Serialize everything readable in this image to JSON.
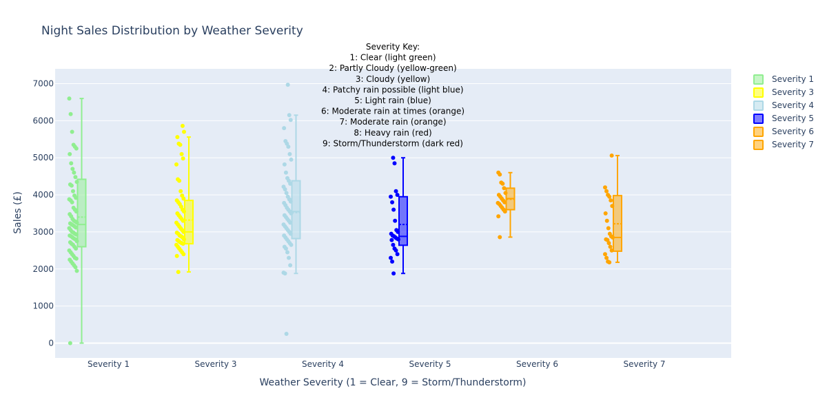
{
  "chart_data": {
    "type": "box",
    "title": "Night Sales Distribution by Weather Severity",
    "xlabel": "Weather Severity (1 = Clear, 9 = Storm/Thunderstorm)",
    "ylabel": "Sales (£)",
    "ylim": [
      -400,
      7400
    ],
    "yticks": [
      0,
      1000,
      2000,
      3000,
      4000,
      5000,
      6000,
      7000
    ],
    "grid": true,
    "legend_position": "top-right",
    "categories": [
      "Severity 1",
      "Severity 3",
      "Severity 4",
      "Severity 5",
      "Severity 6",
      "Severity 7"
    ],
    "annotation": {
      "lines": [
        "Severity Key:",
        "1: Clear (light green)",
        "2: Partly Cloudy (yellow-green)",
        "3: Cloudy (yellow)",
        "4: Patchy rain possible (light blue)",
        "5: Light rain (blue)",
        "6: Moderate rain at times (orange)",
        "7: Moderate rain (orange)",
        "8: Heavy rain (red)",
        "9: Storm/Thunderstorm (dark red)"
      ]
    },
    "series": [
      {
        "name": "Severity 1",
        "color": "#90ee90",
        "min": 0,
        "q1": 2600,
        "median": 3200,
        "q3": 4420,
        "max": 6600,
        "mean": 3400,
        "points": [
          6600,
          6180,
          5700,
          5350,
          5300,
          5250,
          5100,
          4850,
          4700,
          4600,
          4480,
          4350,
          4280,
          4250,
          4100,
          3980,
          3920,
          3880,
          3850,
          3800,
          3650,
          3600,
          3550,
          3480,
          3420,
          3350,
          3300,
          3280,
          3250,
          3230,
          3200,
          3180,
          3150,
          3120,
          3100,
          3050,
          3000,
          2980,
          2950,
          2930,
          2900,
          2880,
          2850,
          2820,
          2800,
          2750,
          2720,
          2680,
          2650,
          2600,
          2550,
          2500,
          2450,
          2400,
          2350,
          2300,
          2280,
          2250,
          2200,
          2150,
          2100,
          2050,
          1950,
          0
        ]
      },
      {
        "name": "Severity 3",
        "color": "#ffff00",
        "min": 1920,
        "q1": 2680,
        "median": 3000,
        "q3": 3850,
        "max": 5560,
        "mean": 3320,
        "points": [
          5860,
          5700,
          5560,
          5380,
          5350,
          5100,
          4980,
          4820,
          4420,
          4380,
          4100,
          3980,
          3900,
          3850,
          3800,
          3750,
          3680,
          3600,
          3550,
          3500,
          3450,
          3400,
          3350,
          3300,
          3250,
          3200,
          3150,
          3100,
          3050,
          3000,
          2980,
          2950,
          2900,
          2880,
          2850,
          2800,
          2780,
          2750,
          2720,
          2700,
          2680,
          2650,
          2600,
          2550,
          2500,
          2450,
          2400,
          2350,
          1920
        ]
      },
      {
        "name": "Severity 4",
        "color": "#add8e6",
        "min": 1880,
        "q1": 2820,
        "median": 3550,
        "q3": 4380,
        "max": 6150,
        "mean": 3520,
        "points": [
          6970,
          6150,
          6020,
          5800,
          5450,
          5380,
          5300,
          5100,
          4950,
          4820,
          4600,
          4450,
          4380,
          4300,
          4220,
          4150,
          4050,
          3950,
          3880,
          3820,
          3780,
          3720,
          3650,
          3600,
          3550,
          3500,
          3450,
          3400,
          3350,
          3300,
          3250,
          3200,
          3150,
          3100,
          3050,
          3000,
          2950,
          2900,
          2850,
          2800,
          2750,
          2700,
          2650,
          2600,
          2550,
          2450,
          2300,
          2100,
          1900,
          1880,
          250
        ]
      },
      {
        "name": "Severity 5",
        "color": "#0000ff",
        "min": 1880,
        "q1": 2640,
        "median": 2880,
        "q3": 3950,
        "max": 5000,
        "mean": 3200,
        "points": [
          5000,
          4850,
          4100,
          4000,
          3950,
          3800,
          3600,
          3300,
          3050,
          3000,
          2950,
          2900,
          2880,
          2850,
          2820,
          2800,
          2780,
          2650,
          2550,
          2500,
          2400,
          2300,
          2200,
          1880
        ]
      },
      {
        "name": "Severity 6",
        "color": "#ffa500",
        "min": 2860,
        "q1": 3600,
        "median": 3900,
        "q3": 4180,
        "max": 4600,
        "mean": 3880,
        "points": [
          4600,
          4550,
          4330,
          4300,
          4180,
          4050,
          4000,
          3950,
          3900,
          3850,
          3800,
          3780,
          3750,
          3700,
          3650,
          3600,
          3550,
          3420,
          2860
        ]
      },
      {
        "name": "Severity 7",
        "color": "#ffa500",
        "min": 2180,
        "q1": 2480,
        "median": 2850,
        "q3": 3980,
        "max": 5060,
        "mean": 3220,
        "points": [
          5060,
          4200,
          4100,
          4000,
          3950,
          3850,
          3700,
          3500,
          3300,
          3100,
          2950,
          2880,
          2850,
          2800,
          2780,
          2700,
          2600,
          2500,
          2400,
          2300,
          2200,
          2180
        ]
      }
    ]
  }
}
